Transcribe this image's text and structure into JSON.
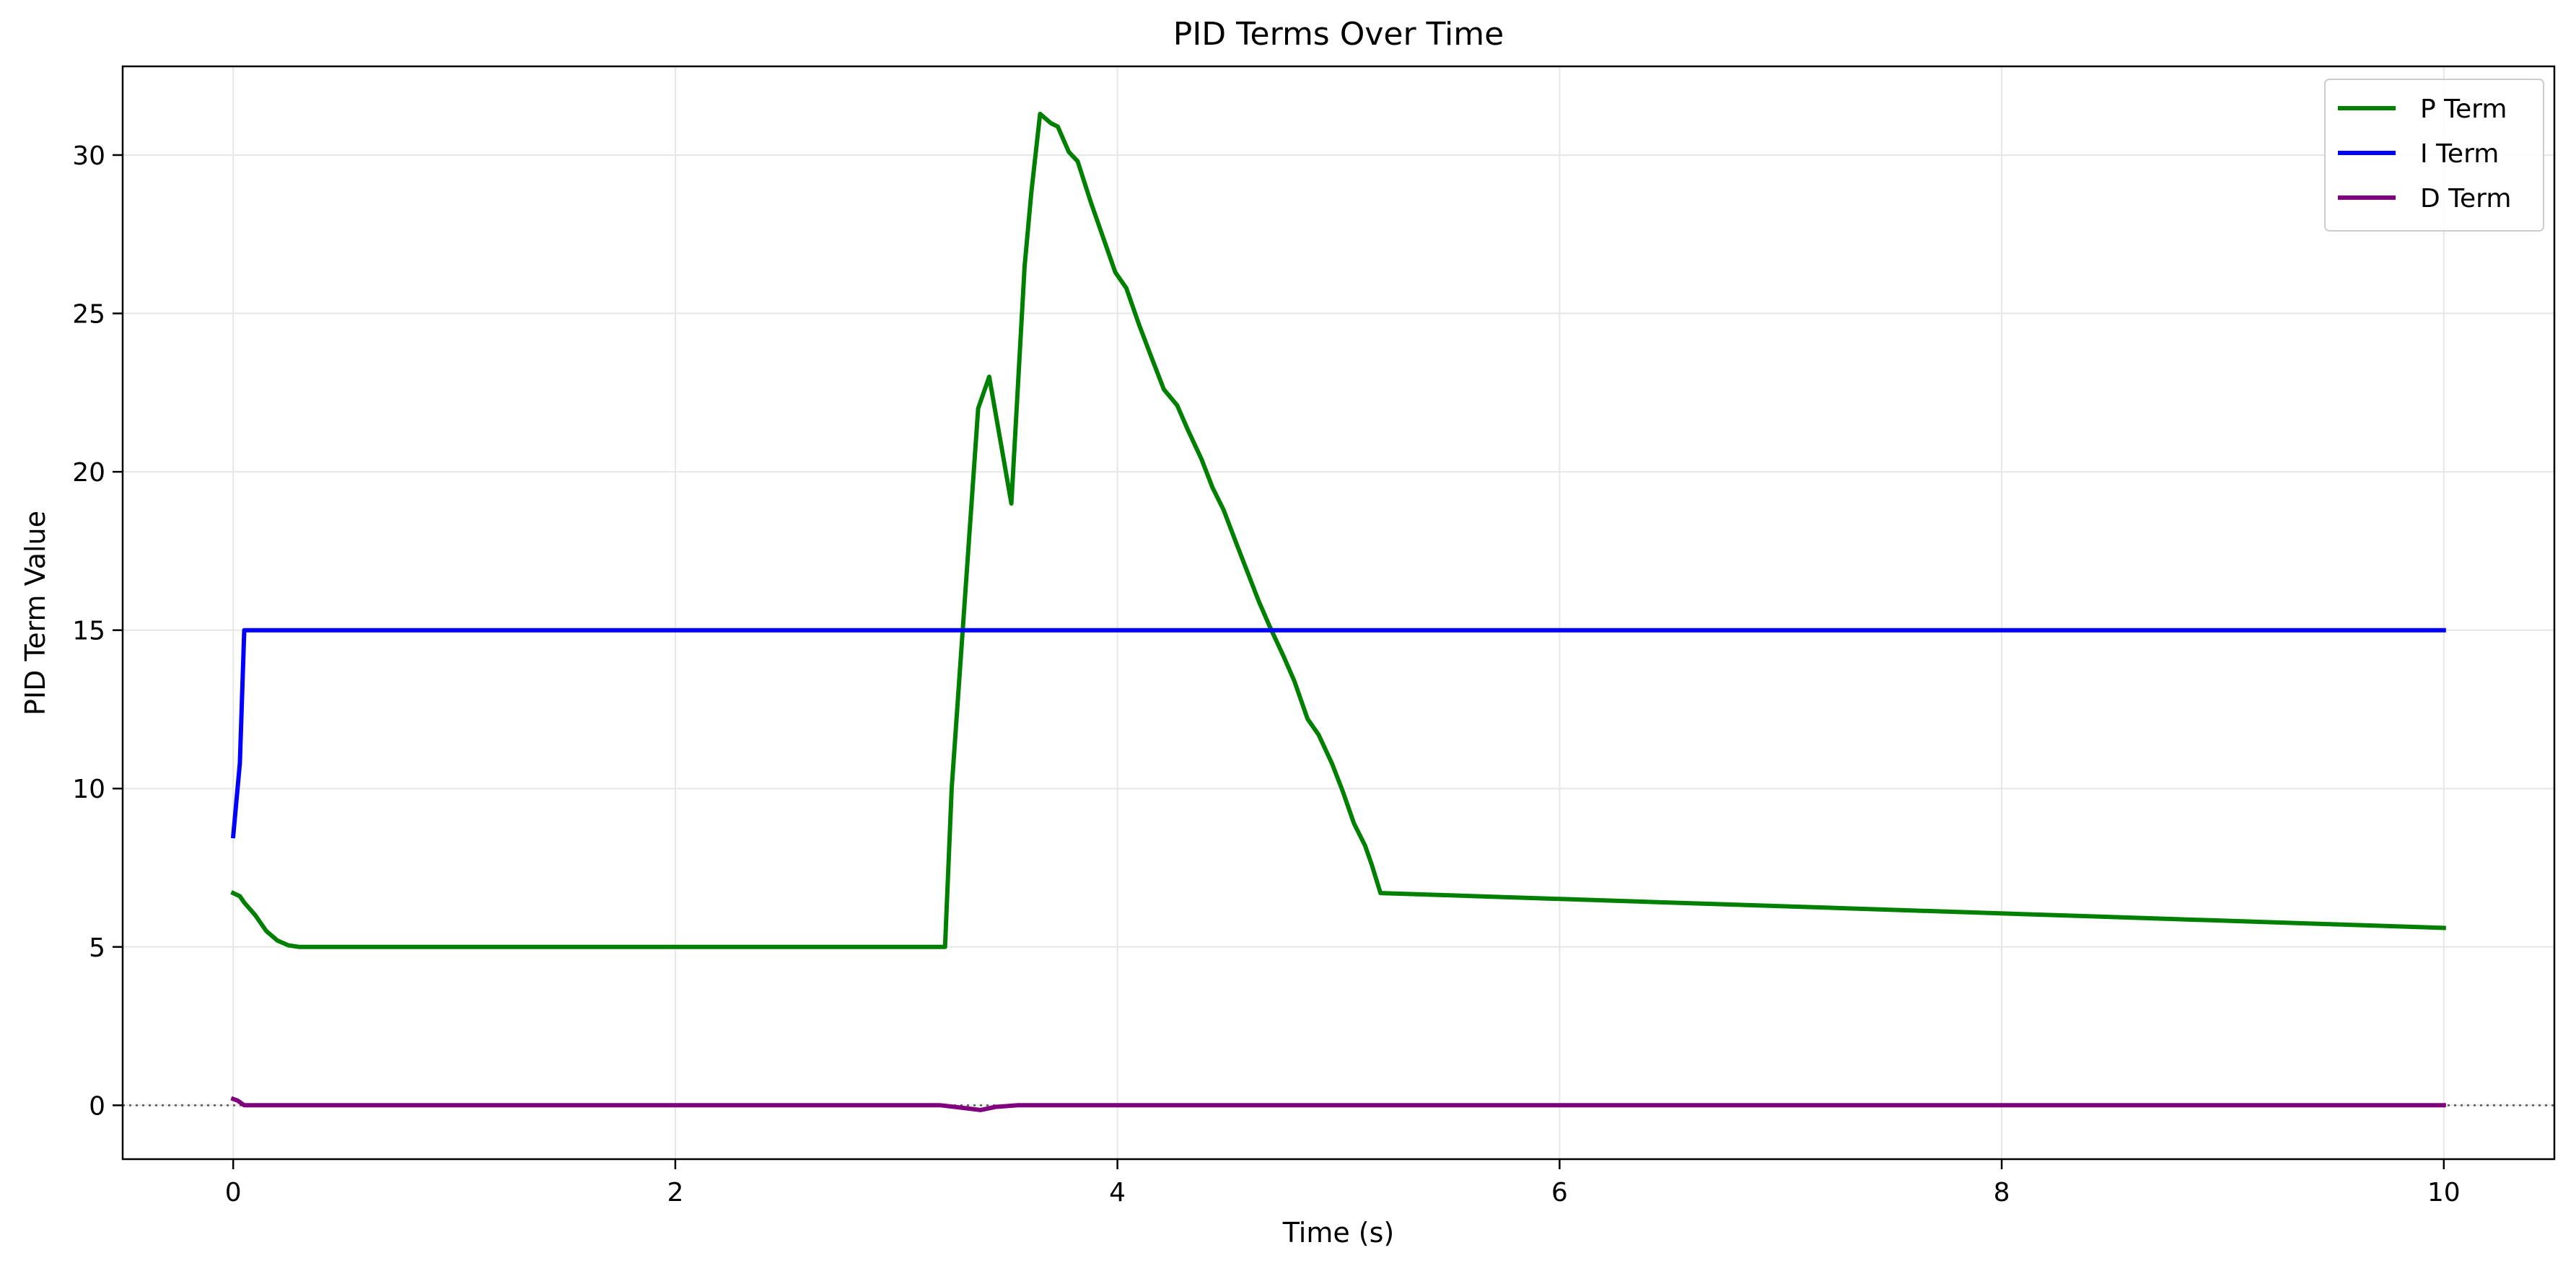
{
  "chart_data": {
    "type": "line",
    "title": "PID Terms Over Time",
    "xlabel": "Time (s)",
    "ylabel": "PID Term Value",
    "xlim": [
      -0.5,
      10.5
    ],
    "ylim": [
      -1.7,
      32.8
    ],
    "xticks": [
      0,
      2,
      4,
      6,
      8,
      10
    ],
    "yticks": [
      0,
      5,
      10,
      15,
      20,
      25,
      30
    ],
    "grid": true,
    "zero_line": {
      "y": 0,
      "style": "dotted",
      "color": "#555555"
    },
    "legend": {
      "placement": "top-right",
      "entries": [
        "P Term",
        "I Term",
        "D Term"
      ]
    },
    "series": [
      {
        "name": "P Term",
        "color": "#008000",
        "x": [
          0,
          0.03,
          0.05,
          0.1,
          0.15,
          0.2,
          0.25,
          0.3,
          3.22,
          3.25,
          3.37,
          3.42,
          3.47,
          3.52,
          3.58,
          3.61,
          3.65,
          3.7,
          3.73,
          3.78,
          3.82,
          3.88,
          3.94,
          3.99,
          4.04,
          4.1,
          4.16,
          4.21,
          4.27,
          4.32,
          4.38,
          4.43,
          4.48,
          4.54,
          4.59,
          4.64,
          4.69,
          4.75,
          4.8,
          4.86,
          4.91,
          4.97,
          5.02,
          5.07,
          5.12,
          5.15,
          5.19,
          10
        ],
        "values": [
          6.7,
          6.6,
          6.4,
          6.0,
          5.5,
          5.2,
          5.05,
          5.0,
          5.0,
          10.0,
          22.0,
          23.0,
          21.0,
          19.0,
          26.5,
          28.8,
          31.3,
          31.0,
          30.9,
          30.1,
          29.8,
          28.5,
          27.3,
          26.3,
          25.8,
          24.6,
          23.5,
          22.6,
          22.1,
          21.3,
          20.4,
          19.5,
          18.8,
          17.7,
          16.8,
          15.9,
          15.1,
          14.2,
          13.4,
          12.2,
          11.7,
          10.8,
          9.9,
          8.9,
          8.2,
          7.6,
          6.7,
          5.6
        ]
      },
      {
        "name": "I Term",
        "color": "#0000ff",
        "x": [
          0,
          0.03,
          0.05,
          10
        ],
        "values": [
          8.5,
          10.8,
          15.0,
          15.0
        ]
      },
      {
        "name": "D Term",
        "color": "#800080",
        "x": [
          0,
          0.02,
          0.05,
          3.2,
          3.3,
          3.38,
          3.45,
          3.55,
          4.0,
          4.5,
          10
        ],
        "values": [
          0.2,
          0.15,
          0.0,
          0.0,
          -0.08,
          -0.15,
          -0.05,
          0.0,
          0.0,
          0.0,
          0.0
        ]
      }
    ]
  }
}
